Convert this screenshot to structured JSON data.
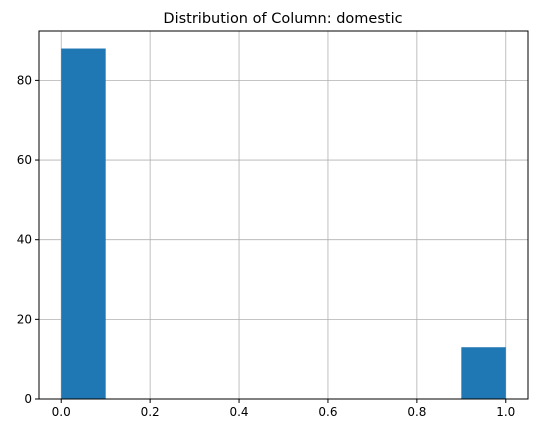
{
  "chart_data": {
    "type": "histogram",
    "title": "Distribution of Column: domestic",
    "xlabel": "",
    "ylabel": "",
    "bins": [
      {
        "x0": 0.0,
        "x1": 0.1,
        "count": 88
      },
      {
        "x0": 0.1,
        "x1": 0.2,
        "count": 0
      },
      {
        "x0": 0.2,
        "x1": 0.3,
        "count": 0
      },
      {
        "x0": 0.3,
        "x1": 0.4,
        "count": 0
      },
      {
        "x0": 0.4,
        "x1": 0.5,
        "count": 0
      },
      {
        "x0": 0.5,
        "x1": 0.6,
        "count": 0
      },
      {
        "x0": 0.6,
        "x1": 0.7,
        "count": 0
      },
      {
        "x0": 0.7,
        "x1": 0.8,
        "count": 0
      },
      {
        "x0": 0.8,
        "x1": 0.9,
        "count": 0
      },
      {
        "x0": 0.9,
        "x1": 1.0,
        "count": 13
      }
    ],
    "xlim": [
      -0.05,
      1.05
    ],
    "ylim": [
      0,
      92.4
    ],
    "xticks": [
      0.0,
      0.2,
      0.4,
      0.6,
      0.8,
      1.0
    ],
    "xtick_labels": [
      "0.0",
      "0.2",
      "0.4",
      "0.6",
      "0.8",
      "1.0"
    ],
    "yticks": [
      0,
      20,
      40,
      60,
      80
    ],
    "ytick_labels": [
      "0",
      "20",
      "40",
      "60",
      "80"
    ],
    "grid": true,
    "bar_color": "#1f77b4",
    "grid_color": "#b0b0b0"
  }
}
